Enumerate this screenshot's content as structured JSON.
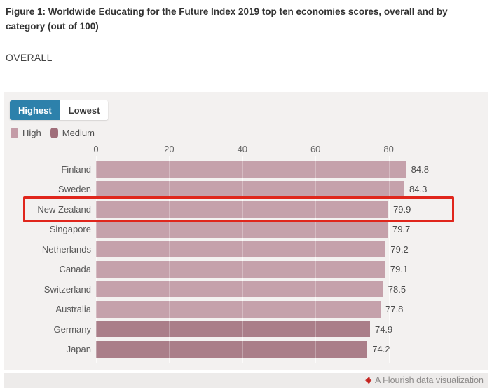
{
  "figure": {
    "title": "Figure 1: Worldwide Educating for the Future Index 2019 top ten economies scores, overall and by category (out of 100)",
    "section_label": "OVERALL"
  },
  "controls": {
    "tabs": [
      {
        "label": "Highest",
        "active": true
      },
      {
        "label": "Lowest",
        "active": false
      }
    ],
    "active_bg": "#2d81ab",
    "active_fg": "#ffffff"
  },
  "legend": [
    {
      "label": "High",
      "color": "#c49ca7"
    },
    {
      "label": "Medium",
      "color": "#a06e7a"
    }
  ],
  "chart_data": {
    "type": "bar",
    "orientation": "horizontal",
    "title": "Worldwide Educating for the Future Index 2019 top ten economies scores, overall (out of 100)",
    "categories": [
      "Finland",
      "Sweden",
      "New Zealand",
      "Singapore",
      "Netherlands",
      "Canada",
      "Switzerland",
      "Australia",
      "Germany",
      "Japan"
    ],
    "values": [
      84.8,
      84.3,
      79.9,
      79.7,
      79.2,
      79.1,
      78.5,
      77.8,
      74.9,
      74.2
    ],
    "bands": [
      "high",
      "high",
      "high",
      "high",
      "high",
      "high",
      "high",
      "high",
      "medium",
      "medium"
    ],
    "colors": {
      "high": "#c5a1ab",
      "medium": "#aa7e89"
    },
    "x_ticks": [
      0,
      20,
      40,
      60,
      80
    ],
    "xlim": [
      0,
      100
    ],
    "grid": true,
    "legend_position": "top-left",
    "highlighted_category": "New Zealand",
    "highlight_color": "#e0261c"
  },
  "footer": {
    "attribution": "A Flourish data visualization",
    "icon": "flourish-starburst",
    "icon_color": "#c4231f",
    "icon_glyph": "✹"
  }
}
